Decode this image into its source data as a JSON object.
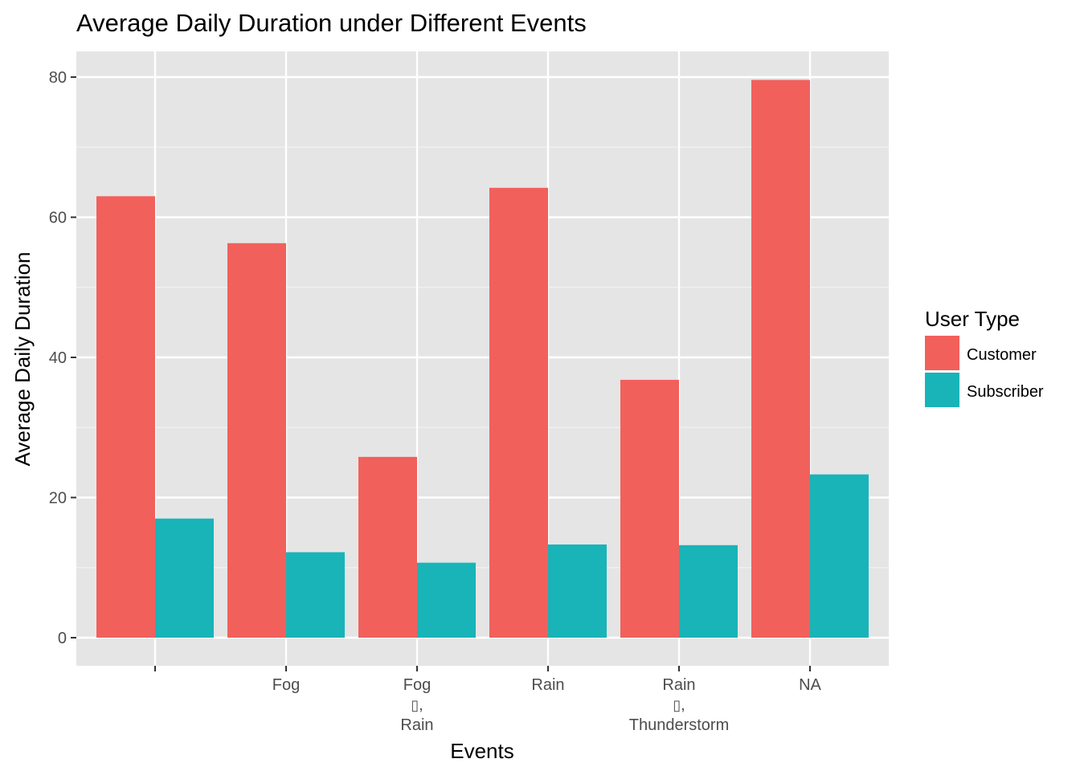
{
  "chart_data": {
    "type": "bar",
    "title": "Average Daily Duration under Different Events",
    "xlabel": "Events",
    "ylabel": "Average Daily Duration",
    "categories": [
      [
        ""
      ],
      [
        "Fog"
      ],
      [
        "Fog",
        ",",
        "Rain"
      ],
      [
        "Rain"
      ],
      [
        "Rain",
        ",",
        "Thunderstorm"
      ],
      [
        "NA"
      ]
    ],
    "series": [
      {
        "name": "Customer",
        "color": "#F2605C",
        "values": [
          63.0,
          56.3,
          25.8,
          64.2,
          36.8,
          79.6
        ]
      },
      {
        "name": "Subscriber",
        "color": "#18B4B8",
        "values": [
          17.0,
          12.2,
          10.7,
          13.3,
          13.2,
          23.3
        ]
      }
    ],
    "ylim": [
      0,
      80
    ],
    "yticks": [
      0,
      20,
      40,
      60,
      80
    ],
    "legend": {
      "title": "User Type",
      "position": "right"
    },
    "grid": true,
    "panel_color": "#E5E5E5"
  }
}
